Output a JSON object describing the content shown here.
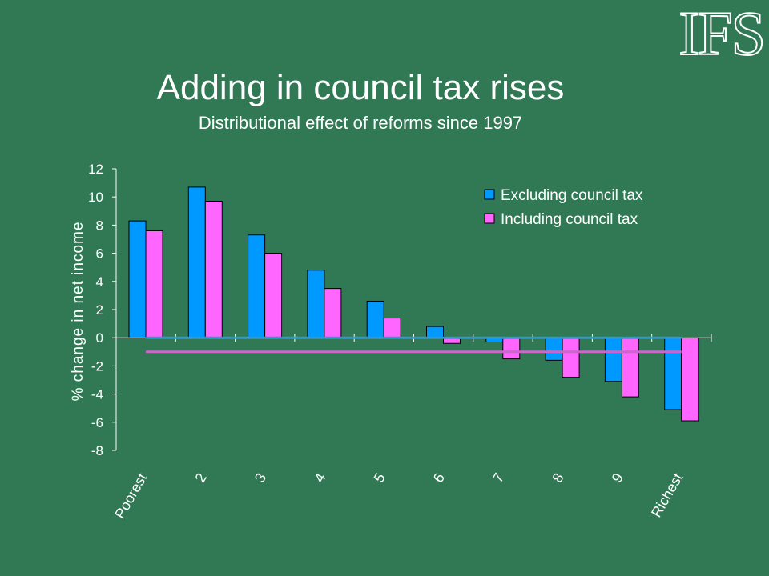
{
  "logo": {
    "text": "IFS"
  },
  "title": "Adding in council tax rises",
  "subtitle": "Distributional effect of reforms since 1997",
  "colors": {
    "background": "#317955",
    "excluding": "#0099ff",
    "including": "#ff66ff",
    "axis": "#ffffff",
    "excluding_average_line": "#3399cc",
    "including_average_line": "#cc66cc"
  },
  "chart_data": {
    "type": "bar",
    "title": "",
    "xlabel": "",
    "ylabel": "% change in net income",
    "ylim": [
      -8,
      12
    ],
    "yticks": [
      12,
      10,
      8,
      6,
      4,
      2,
      0,
      -2,
      -4,
      -6,
      -8
    ],
    "categories": [
      "Poorest",
      "2",
      "3",
      "4",
      "5",
      "6",
      "7",
      "8",
      "9",
      "Richest"
    ],
    "series": [
      {
        "name": "Excluding council tax",
        "values": [
          8.3,
          10.7,
          7.3,
          4.8,
          2.6,
          0.8,
          -0.3,
          -1.6,
          -3.1,
          -5.1
        ]
      },
      {
        "name": "Including council tax",
        "values": [
          7.6,
          9.7,
          6.0,
          3.5,
          1.4,
          -0.4,
          -1.5,
          -2.8,
          -4.2,
          -5.9
        ]
      }
    ],
    "average_lines": [
      {
        "series": "Excluding council tax",
        "value": 0.0
      },
      {
        "series": "Including council tax",
        "value": -1.0
      }
    ],
    "legend_position": "top-right",
    "grid": false
  }
}
